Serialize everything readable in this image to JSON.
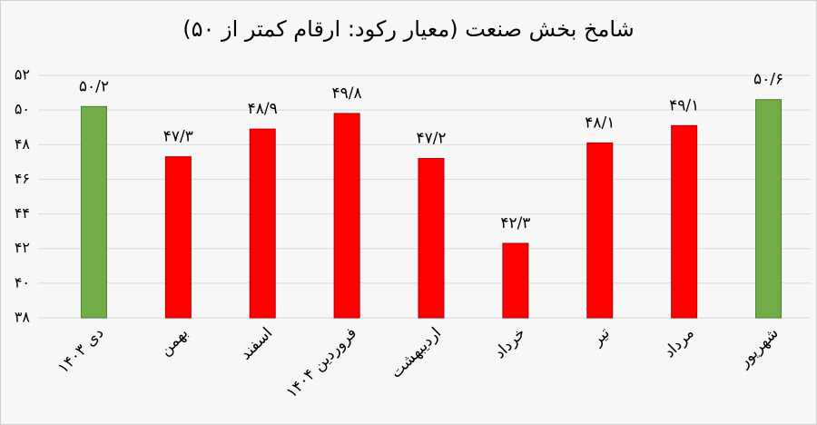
{
  "chart_data": {
    "type": "bar",
    "title": "شامخ بخش صنعت (معیار رکود: ارقام کمتر از ۵۰)",
    "categories": [
      "دی ۱۴۰۳",
      "بهمن",
      "اسفند",
      "فروردین ۱۴۰۴",
      "اردیبهشت",
      "خرداد",
      "تیر",
      "مرداد",
      "شهریور"
    ],
    "values": [
      50.2,
      47.3,
      48.9,
      49.8,
      47.2,
      42.3,
      48.1,
      49.1,
      50.6
    ],
    "value_labels": [
      "۵۰/۲",
      "۴۷/۳",
      "۴۸/۹",
      "۴۹/۸",
      "۴۷/۲",
      "۴۲/۳",
      "۴۸/۱",
      "۴۹/۱",
      "۵۰/۶"
    ],
    "colors": [
      "#70ad47",
      "#ff0000",
      "#ff0000",
      "#ff0000",
      "#ff0000",
      "#ff0000",
      "#ff0000",
      "#ff0000",
      "#70ad47"
    ],
    "ylim": [
      38,
      52
    ],
    "yticks": [
      {
        "value": 38,
        "label": "۳۸"
      },
      {
        "value": 40,
        "label": "۴۰"
      },
      {
        "value": 42,
        "label": "۴۲"
      },
      {
        "value": 44,
        "label": "۴۴"
      },
      {
        "value": 46,
        "label": "۴۶"
      },
      {
        "value": 48,
        "label": "۴۸"
      },
      {
        "value": 50,
        "label": "۵۰"
      },
      {
        "value": 52,
        "label": "۵۲"
      }
    ],
    "grid": true
  }
}
